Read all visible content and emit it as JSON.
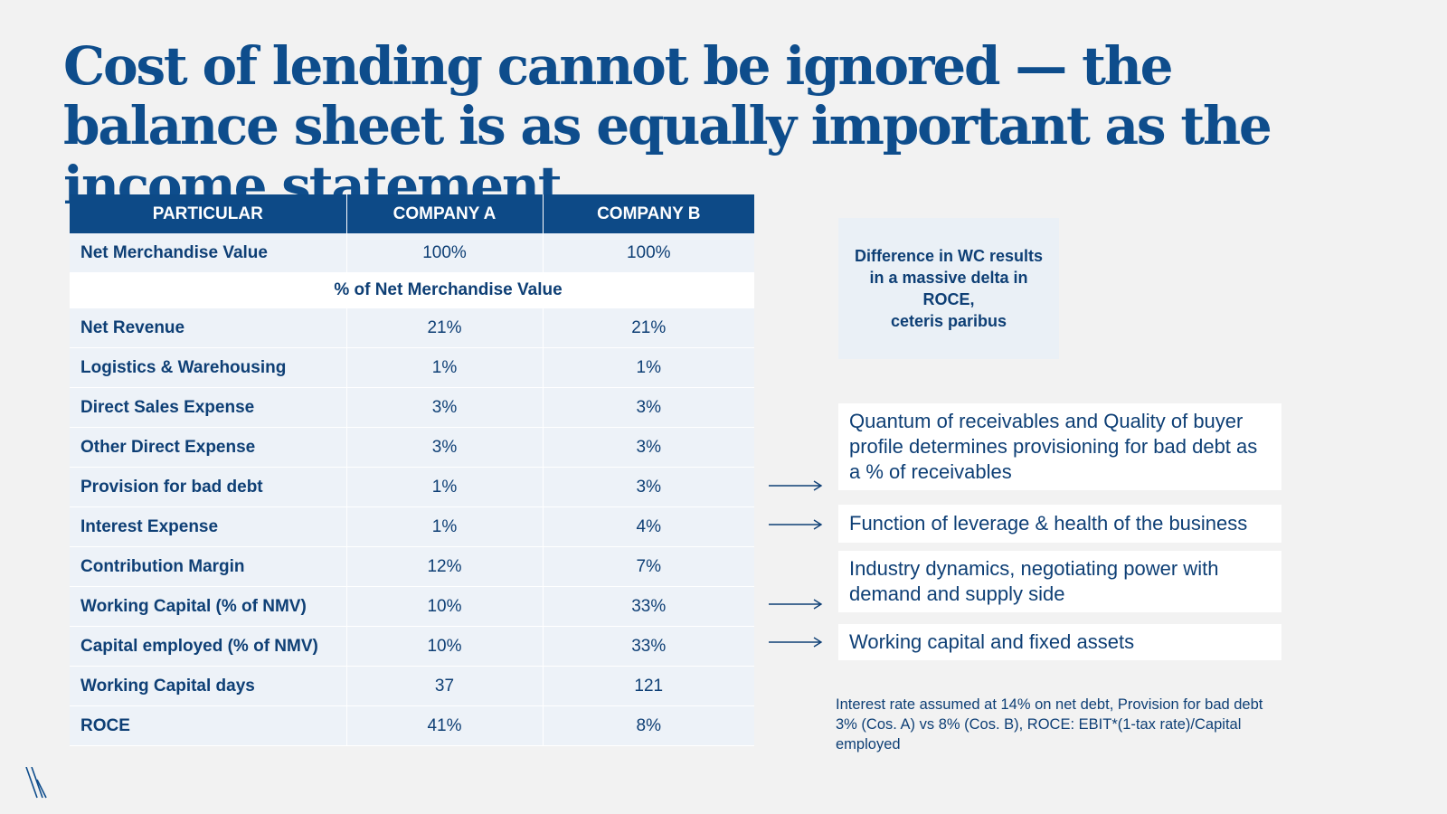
{
  "title": "Cost of lending cannot be ignored — the balance sheet is as equally important as the income statement",
  "table": {
    "headers": [
      "PARTICULAR",
      "COMPANY A",
      "COMPANY B"
    ],
    "first_row": {
      "label": "Net Merchandise Value",
      "a": "100%",
      "b": "100%"
    },
    "subheader": "% of Net Merchandise Value",
    "rows": [
      {
        "label": "Net Revenue",
        "a": "21%",
        "b": "21%"
      },
      {
        "label": "Logistics & Warehousing",
        "a": "1%",
        "b": "1%"
      },
      {
        "label": "Direct Sales Expense",
        "a": "3%",
        "b": "3%"
      },
      {
        "label": "Other Direct Expense",
        "a": "3%",
        "b": "3%"
      },
      {
        "label": "Provision for bad debt",
        "a": "1%",
        "b": "3%"
      },
      {
        "label": "Interest Expense",
        "a": "1%",
        "b": "4%"
      },
      {
        "label": "Contribution Margin",
        "a": "12%",
        "b": "7%"
      },
      {
        "label": "Working Capital (% of NMV)",
        "a": "10%",
        "b": "33%"
      },
      {
        "label": "Capital employed (% of NMV)",
        "a": "10%",
        "b": "33%"
      },
      {
        "label": "Working Capital days",
        "a": "37",
        "b": "121"
      },
      {
        "label": "ROCE",
        "a": "41%",
        "b": "8%"
      }
    ]
  },
  "wc_box": "Difference in WC results\nin a massive delta in\nROCE,\nceteris paribus",
  "notes": {
    "receivables": "Quantum of receivables and Quality of buyer profile determines provisioning for bad debt as a % of receivables",
    "leverage": "Function of leverage & health of the business",
    "industry": "Industry dynamics, negotiating power with demand and supply side",
    "capital": "Working capital and fixed assets"
  },
  "footnote": "Interest rate assumed at 14% on net debt, Provision for bad debt 3% (Cos. A) vs 8% (Cos. B), ROCE: EBIT*(1-tax rate)/Capital employed",
  "colors": {
    "primary": "#0d4a87",
    "text": "#0e3f75",
    "row_bg": "#edf2f8",
    "page_bg": "#f2f2f2"
  },
  "logo_icon": "brand-slashes-icon",
  "arrow_icon": "arrow-right-icon"
}
